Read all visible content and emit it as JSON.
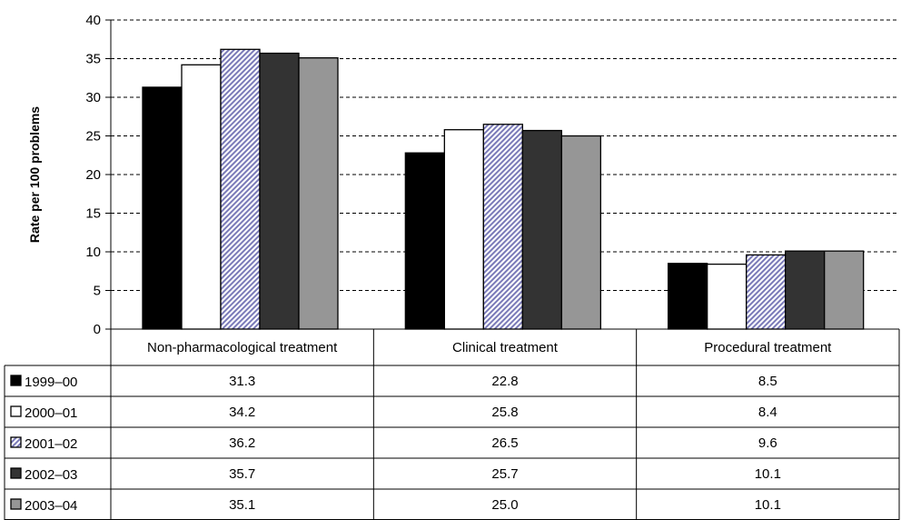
{
  "chart_data": {
    "type": "bar",
    "title": "",
    "xlabel": "",
    "ylabel": "Rate per 100 problems",
    "ylim": [
      0,
      40
    ],
    "yticks": [
      0,
      5,
      10,
      15,
      20,
      25,
      30,
      35,
      40
    ],
    "grid": true,
    "legend": "data-table",
    "categories": [
      "Non-pharmacological treatment",
      "Clinical treatment",
      "Procedural treatment"
    ],
    "series": [
      {
        "name": "1999–00",
        "values": [
          31.3,
          22.8,
          8.5
        ],
        "fill": "#000000",
        "pattern": "solid"
      },
      {
        "name": "2000–01",
        "values": [
          34.2,
          25.8,
          8.4
        ],
        "fill": "#ffffff",
        "pattern": "solid"
      },
      {
        "name": "2001–02",
        "values": [
          36.2,
          26.5,
          9.6
        ],
        "fill": "#8c8cc8",
        "pattern": "hatch"
      },
      {
        "name": "2002–03",
        "values": [
          35.7,
          25.7,
          10.1
        ],
        "fill": "#333333",
        "pattern": "solid"
      },
      {
        "name": "2003–04",
        "values": [
          35.1,
          25.0,
          10.1
        ],
        "fill": "#969696",
        "pattern": "solid"
      }
    ],
    "value_labels": [
      [
        "31.3",
        "22.8",
        "8.5"
      ],
      [
        "34.2",
        "25.8",
        "8.4"
      ],
      [
        "36.2",
        "26.5",
        "9.6"
      ],
      [
        "35.7",
        "25.7",
        "10.1"
      ],
      [
        "35.1",
        "25.0",
        "10.1"
      ]
    ]
  }
}
